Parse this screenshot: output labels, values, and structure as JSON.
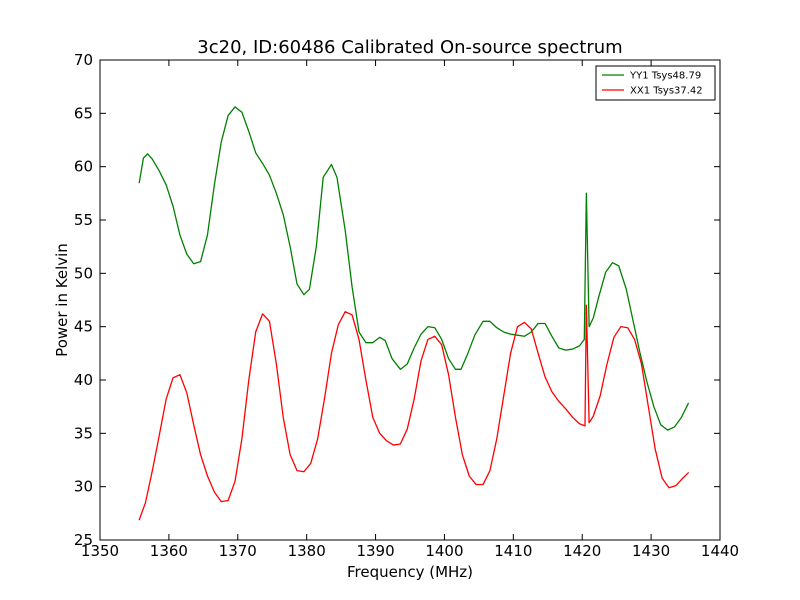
{
  "chart_data": {
    "type": "line",
    "title": "3c20, ID:60486 Calibrated On-source spectrum",
    "xlabel": "Frequency (MHz)",
    "ylabel": "Power in Kelvin",
    "xlim": [
      1350,
      1440
    ],
    "ylim": [
      25,
      70
    ],
    "xticks": [
      1350,
      1360,
      1370,
      1380,
      1390,
      1400,
      1410,
      1420,
      1430,
      1440
    ],
    "yticks": [
      25,
      30,
      35,
      40,
      45,
      50,
      55,
      60,
      65,
      70
    ],
    "grid": false,
    "legend_position": "top-right",
    "series": [
      {
        "name": "YY1 Tsys48.79",
        "color": "#008000",
        "x": [
          1355.7,
          1356.3,
          1356.9,
          1357.6,
          1358.6,
          1359.6,
          1360.6,
          1361.6,
          1362.6,
          1363.6,
          1364.6,
          1365.6,
          1366.6,
          1367.6,
          1368.6,
          1369.6,
          1370.6,
          1371.6,
          1372.6,
          1373.6,
          1374.6,
          1375.6,
          1376.6,
          1377.6,
          1378.6,
          1379.6,
          1380.4,
          1381.4,
          1382.4,
          1383.6,
          1384.4,
          1385.6,
          1386.6,
          1387.6,
          1388.6,
          1389.6,
          1390.6,
          1391.4,
          1392.4,
          1393.6,
          1394.6,
          1395.6,
          1396.6,
          1397.6,
          1398.6,
          1399.6,
          1400.6,
          1401.6,
          1402.4,
          1403.4,
          1404.4,
          1405.6,
          1406.6,
          1407.6,
          1408.6,
          1409.6,
          1410.6,
          1411.6,
          1412.6,
          1413.6,
          1414.6,
          1415.6,
          1416.6,
          1417.6,
          1418.6,
          1419.6,
          1420.3,
          1420.6,
          1421.0,
          1421.6,
          1422.4,
          1423.4,
          1424.4,
          1425.3,
          1426.4,
          1427.4,
          1428.4,
          1429.4,
          1430.4,
          1431.4,
          1432.4,
          1433.4,
          1434.4,
          1435.4
        ],
        "values": [
          58.5,
          60.8,
          61.2,
          60.7,
          59.6,
          58.3,
          56.3,
          53.6,
          51.8,
          50.9,
          51.1,
          53.6,
          58.3,
          62.3,
          64.8,
          65.6,
          65.1,
          63.3,
          61.3,
          60.3,
          59.2,
          57.5,
          55.5,
          52.5,
          49.0,
          48.0,
          48.5,
          52.5,
          59.0,
          60.2,
          59.0,
          54.0,
          48.7,
          44.5,
          43.5,
          43.5,
          44.0,
          43.7,
          42.0,
          41.0,
          41.5,
          43.0,
          44.3,
          45.0,
          44.9,
          43.8,
          42.0,
          41.0,
          41.0,
          42.5,
          44.2,
          45.5,
          45.5,
          44.9,
          44.5,
          44.3,
          44.2,
          44.1,
          44.5,
          45.3,
          45.3,
          44.1,
          43.0,
          42.8,
          42.9,
          43.2,
          43.8,
          57.5,
          45.0,
          45.8,
          47.8,
          50.1,
          51.0,
          50.7,
          48.5,
          45.5,
          42.5,
          39.8,
          37.5,
          35.8,
          35.3,
          35.6,
          36.5,
          37.8
        ]
      },
      {
        "name": "XX1 Tsys37.42",
        "color": "#ff0000",
        "x": [
          1355.7,
          1356.6,
          1357.6,
          1358.6,
          1359.6,
          1360.6,
          1361.6,
          1362.6,
          1363.6,
          1364.6,
          1365.6,
          1366.6,
          1367.6,
          1368.6,
          1369.6,
          1370.6,
          1371.6,
          1372.6,
          1373.6,
          1374.6,
          1375.6,
          1376.6,
          1377.6,
          1378.6,
          1379.6,
          1380.6,
          1381.6,
          1382.6,
          1383.6,
          1384.6,
          1385.6,
          1386.6,
          1387.6,
          1388.6,
          1389.6,
          1390.6,
          1391.6,
          1392.6,
          1393.6,
          1394.6,
          1395.6,
          1396.6,
          1397.6,
          1398.6,
          1399.6,
          1400.6,
          1401.6,
          1402.6,
          1403.6,
          1404.6,
          1405.6,
          1406.6,
          1407.6,
          1408.6,
          1409.6,
          1410.6,
          1411.6,
          1412.6,
          1413.6,
          1414.6,
          1415.6,
          1416.6,
          1417.6,
          1418.6,
          1419.6,
          1420.4,
          1420.6,
          1421.0,
          1421.6,
          1422.6,
          1423.6,
          1424.6,
          1425.6,
          1426.6,
          1427.6,
          1428.6,
          1429.6,
          1430.6,
          1431.6,
          1432.6,
          1433.6,
          1434.6,
          1435.4
        ],
        "values": [
          26.9,
          28.5,
          31.5,
          34.8,
          38.2,
          40.2,
          40.5,
          38.8,
          35.8,
          33.0,
          31.0,
          29.5,
          28.6,
          28.7,
          30.5,
          34.5,
          40.0,
          44.5,
          46.2,
          45.5,
          41.5,
          36.5,
          33.0,
          31.5,
          31.4,
          32.2,
          34.5,
          38.3,
          42.5,
          45.2,
          46.4,
          46.1,
          43.8,
          40.0,
          36.5,
          35.0,
          34.3,
          33.9,
          34.0,
          35.4,
          38.2,
          41.8,
          43.8,
          44.1,
          43.3,
          40.5,
          36.5,
          33.0,
          31.0,
          30.2,
          30.2,
          31.5,
          34.5,
          38.5,
          42.5,
          45.0,
          45.4,
          44.8,
          42.5,
          40.3,
          38.9,
          38.0,
          37.3,
          36.5,
          35.9,
          35.7,
          47.0,
          36.0,
          36.6,
          38.5,
          41.5,
          44.0,
          45.0,
          44.9,
          43.8,
          41.5,
          37.5,
          33.5,
          30.8,
          29.9,
          30.1,
          30.8,
          31.3
        ]
      }
    ]
  }
}
